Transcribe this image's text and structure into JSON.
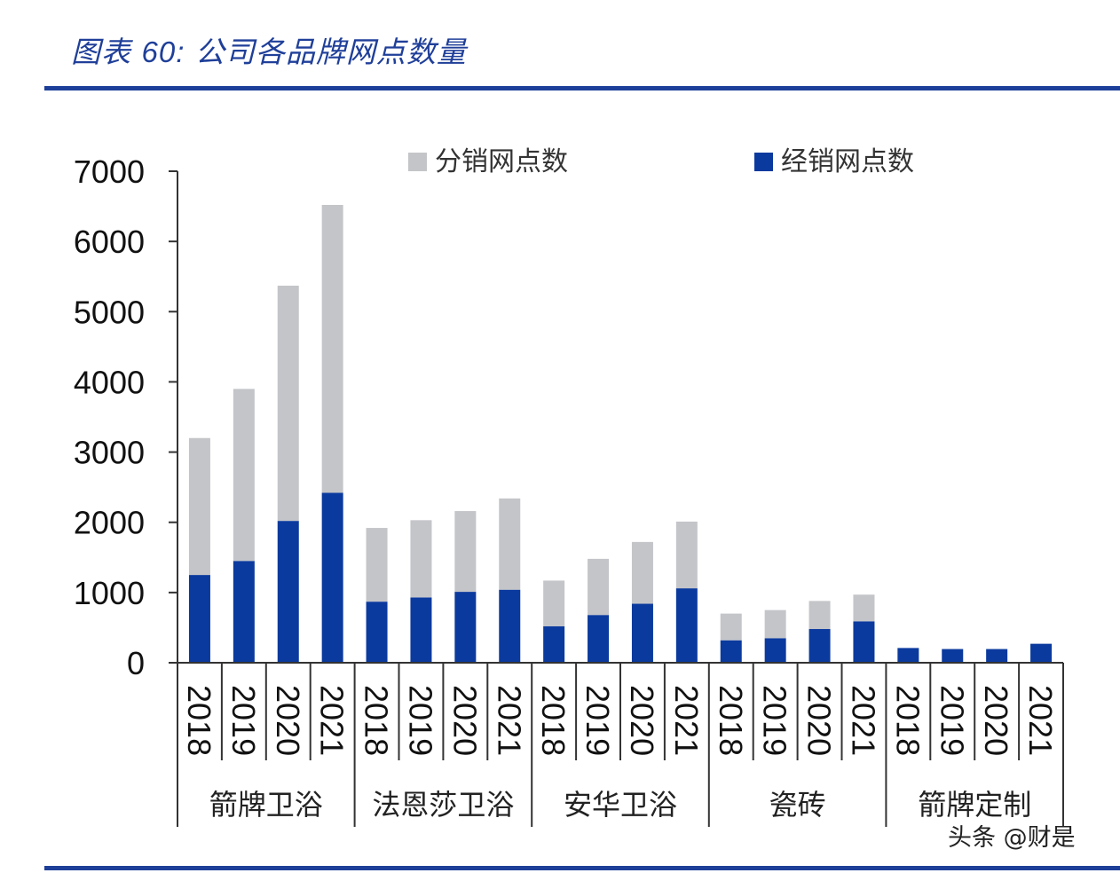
{
  "figure": {
    "title_prefix": "图表",
    "title_number": "60:",
    "title_text": "公司各品牌网点数量",
    "watermark": "头条 @财是"
  },
  "colors": {
    "accent": "#1e3f99",
    "distribution": "#c4c5c9",
    "dealer": "#0b3a9e",
    "axis": "#333333"
  },
  "chart_data": {
    "type": "bar",
    "stacked": true,
    "title": "公司各品牌网点数量",
    "xlabel": "",
    "ylabel": "",
    "ylim": [
      0,
      7000
    ],
    "yticks": [
      "0",
      "1000",
      "2000",
      "3000",
      "4000",
      "5000",
      "6000",
      "7000"
    ],
    "legend_position": "top",
    "groups": [
      {
        "name": "箭牌卫浴",
        "years": [
          "2018",
          "2019",
          "2020",
          "2021"
        ]
      },
      {
        "name": "法恩莎卫浴",
        "years": [
          "2018",
          "2019",
          "2020",
          "2021"
        ]
      },
      {
        "name": "安华卫浴",
        "years": [
          "2018",
          "2019",
          "2020",
          "2021"
        ]
      },
      {
        "name": "瓷砖",
        "years": [
          "2018",
          "2019",
          "2020",
          "2021"
        ]
      },
      {
        "name": "箭牌定制",
        "years": [
          "2018",
          "2019",
          "2020",
          "2021"
        ]
      }
    ],
    "series": [
      {
        "name": "分销网点数",
        "color": "#c4c5c9",
        "values": [
          1950,
          2450,
          3350,
          4100,
          1050,
          1100,
          1150,
          1300,
          650,
          800,
          880,
          950,
          380,
          400,
          400,
          380,
          0,
          0,
          0,
          0
        ]
      },
      {
        "name": "经销网点数",
        "color": "#0b3a9e",
        "values": [
          1250,
          1450,
          2020,
          2420,
          870,
          930,
          1010,
          1040,
          520,
          680,
          840,
          1060,
          320,
          350,
          480,
          590,
          210,
          195,
          195,
          270
        ]
      }
    ]
  }
}
